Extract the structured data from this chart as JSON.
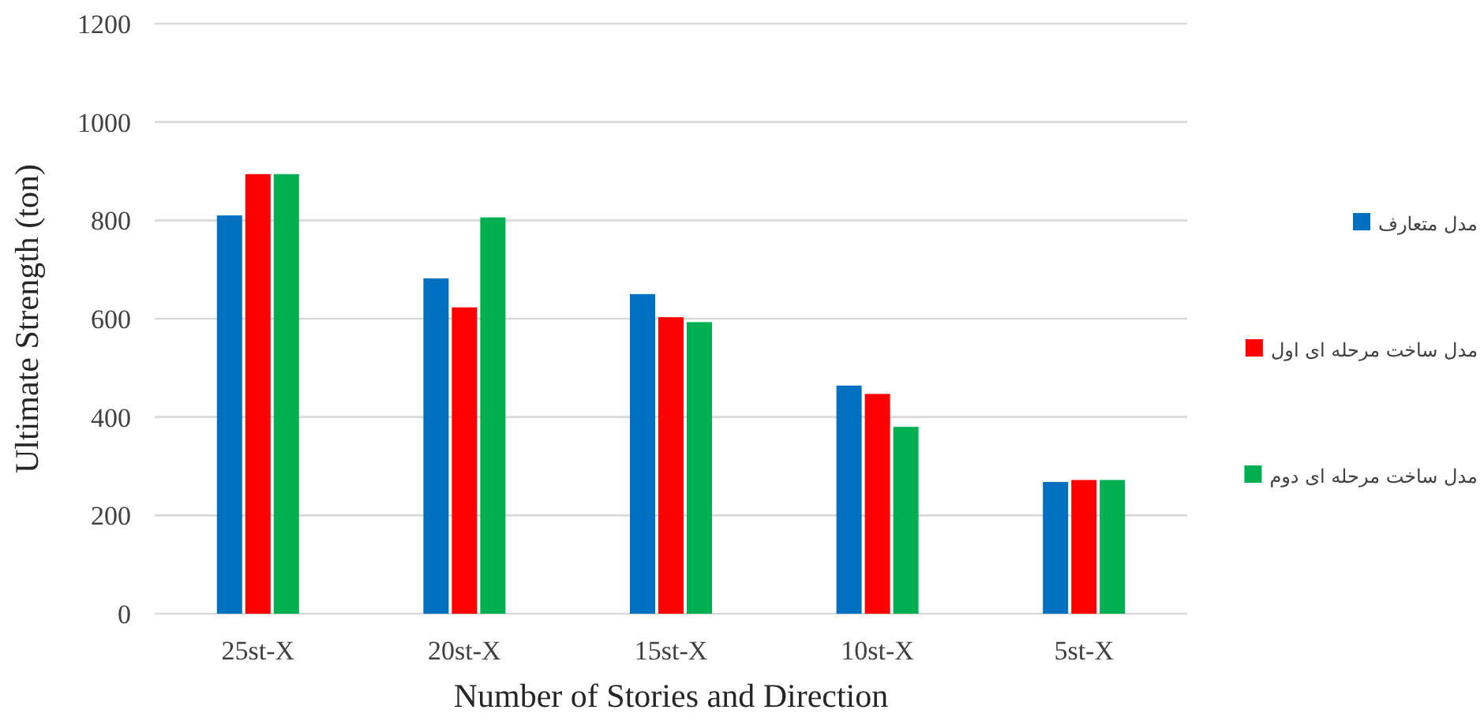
{
  "chart_data": {
    "type": "bar",
    "xlabel": "Number of Stories and Direction",
    "ylabel": "Ultimate Strength (ton)",
    "categories": [
      "25st-X",
      "20st-X",
      "15st-X",
      "10st-X",
      "5st-X"
    ],
    "series": [
      {
        "name": "مدل متعارف",
        "color": "#0070c0",
        "values": [
          810,
          682,
          650,
          464,
          268
        ]
      },
      {
        "name": "مدل ساخت مرحله ای اول",
        "color": "#ff0000",
        "values": [
          894,
          623,
          603,
          447,
          272
        ]
      },
      {
        "name": "مدل ساخت مرحله ای دوم",
        "color": "#00b050",
        "values": [
          894,
          806,
          593,
          380,
          272
        ]
      }
    ],
    "ylim": [
      0,
      1200
    ],
    "yticks": [
      0,
      200,
      400,
      600,
      800,
      1000,
      1200
    ],
    "grid": "y",
    "legend": "right"
  }
}
